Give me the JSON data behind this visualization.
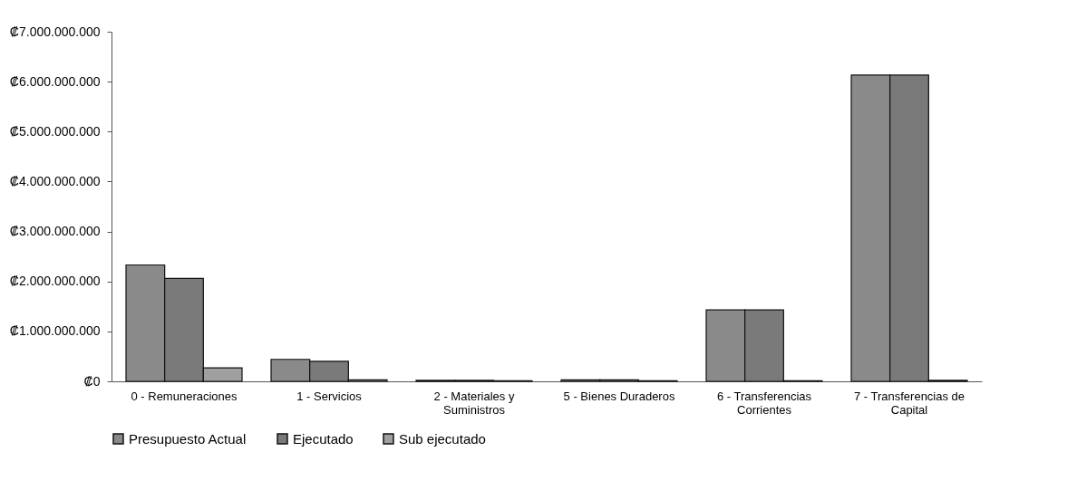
{
  "chart_data": {
    "type": "bar",
    "categories": [
      "0 - Remuneraciones",
      "1 - Servicios",
      "2 - Materiales y Suministros",
      "5 - Bienes Duraderos",
      "6 - Transferencias Corrientes",
      "7 - Transferencias de Capital"
    ],
    "series": [
      {
        "name": "Presupuesto Actual",
        "color": "#8a8a8a",
        "values": [
          2330000000,
          440000000,
          20000000,
          30000000,
          1430000000,
          6130000000
        ]
      },
      {
        "name": "Ejecutado",
        "color": "#7a7a7a",
        "values": [
          2060000000,
          400000000,
          20000000,
          30000000,
          1430000000,
          6130000000
        ]
      },
      {
        "name": "Sub ejecutado",
        "color": "#a0a0a0",
        "values": [
          270000000,
          30000000,
          10000000,
          10000000,
          10000000,
          20000000
        ]
      }
    ],
    "ylim": [
      0,
      7000000000
    ],
    "yticks": [
      {
        "value": 0,
        "label": "₡0"
      },
      {
        "value": 1000000000,
        "label": "₡1.000.000.000"
      },
      {
        "value": 2000000000,
        "label": "₡2.000.000.000"
      },
      {
        "value": 3000000000,
        "label": "₡3.000.000.000"
      },
      {
        "value": 4000000000,
        "label": "₡4.000.000.000"
      },
      {
        "value": 5000000000,
        "label": "₡5.000.000.000"
      },
      {
        "value": 6000000000,
        "label": "₡6.000.000.000"
      },
      {
        "value": 7000000000,
        "label": "₡7.000.000.000"
      }
    ],
    "grid": false,
    "legend": "bottom"
  }
}
